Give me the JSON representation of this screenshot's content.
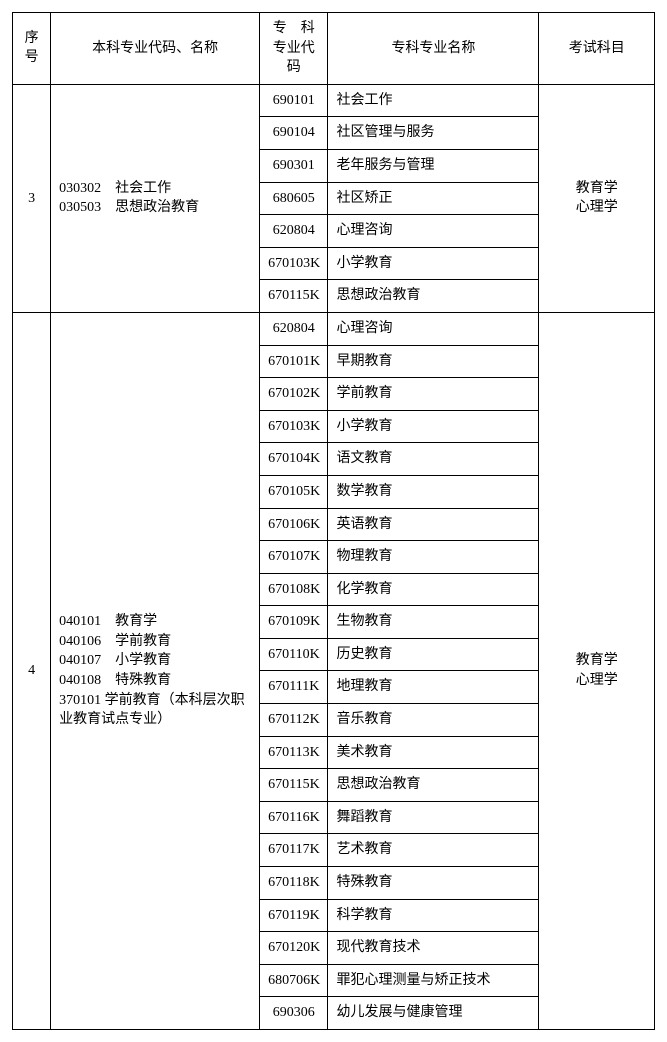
{
  "headers": {
    "seq": "序号",
    "bk": "本科专业代码、名称",
    "zk_code": "专　科\n专业代码",
    "zk_name": "专科专业名称",
    "exam": "考试科目"
  },
  "groups": [
    {
      "seq": "3",
      "bk_lines": [
        "030302　社会工作",
        "030503　思想政治教育"
      ],
      "exam": "教育学\n心理学",
      "rows": [
        {
          "code": "690101",
          "name": "社会工作"
        },
        {
          "code": "690104",
          "name": "社区管理与服务"
        },
        {
          "code": "690301",
          "name": "老年服务与管理"
        },
        {
          "code": "680605",
          "name": "社区矫正"
        },
        {
          "code": "620804",
          "name": "心理咨询"
        },
        {
          "code": "670103K",
          "name": "小学教育"
        },
        {
          "code": "670115K",
          "name": "思想政治教育"
        }
      ]
    },
    {
      "seq": "4",
      "bk_lines": [
        "040101　教育学",
        "040106　学前教育",
        "040107　小学教育",
        "040108　特殊教育",
        "370101 学前教育（本科层次职业教育试点专业）"
      ],
      "exam": "教育学\n心理学",
      "rows": [
        {
          "code": "620804",
          "name": "心理咨询"
        },
        {
          "code": "670101K",
          "name": "早期教育"
        },
        {
          "code": "670102K",
          "name": "学前教育"
        },
        {
          "code": "670103K",
          "name": "小学教育"
        },
        {
          "code": "670104K",
          "name": "语文教育"
        },
        {
          "code": "670105K",
          "name": "数学教育"
        },
        {
          "code": "670106K",
          "name": "英语教育"
        },
        {
          "code": "670107K",
          "name": "物理教育"
        },
        {
          "code": "670108K",
          "name": "化学教育"
        },
        {
          "code": "670109K",
          "name": "生物教育"
        },
        {
          "code": "670110K",
          "name": "历史教育"
        },
        {
          "code": "670111K",
          "name": "地理教育"
        },
        {
          "code": "670112K",
          "name": "音乐教育"
        },
        {
          "code": "670113K",
          "name": "美术教育"
        },
        {
          "code": "670115K",
          "name": "思想政治教育"
        },
        {
          "code": "670116K",
          "name": "舞蹈教育"
        },
        {
          "code": "670117K",
          "name": "艺术教育"
        },
        {
          "code": "670118K",
          "name": "特殊教育"
        },
        {
          "code": "670119K",
          "name": "科学教育"
        },
        {
          "code": "670120K",
          "name": "现代教育技术"
        },
        {
          "code": "680706K",
          "name": "罪犯心理测量与矫正技术"
        },
        {
          "code": "690306",
          "name": "幼儿发展与健康管理"
        }
      ]
    }
  ]
}
